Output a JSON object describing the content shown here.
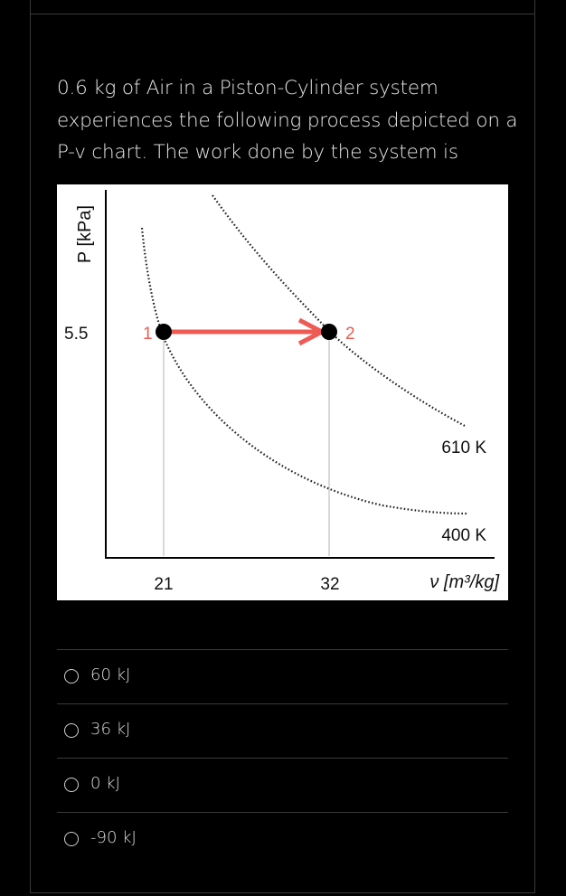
{
  "question": {
    "lines": [
      "0.6 kg of Air in a Piston-Cylinder system",
      "experiences the following process depicted on a",
      "P-v chart. The work done by the system is"
    ]
  },
  "chart_data": {
    "type": "line",
    "ylabel": "P [kPa]",
    "xlabel": "ν [m³/kg]",
    "y_ticks": [
      "5.5"
    ],
    "x_ticks": [
      "21",
      "32"
    ],
    "points": [
      {
        "label": "1",
        "x": 21,
        "y": 5.5
      },
      {
        "label": "2",
        "x": 32,
        "y": 5.5
      }
    ],
    "isotherms": [
      {
        "name": "610 K"
      },
      {
        "name": "400 K"
      }
    ],
    "process": {
      "from": "1",
      "to": "2",
      "color": "#ee5a54"
    }
  },
  "options": [
    {
      "label": "60 kJ"
    },
    {
      "label": "36 kJ"
    },
    {
      "label": "0 kJ"
    },
    {
      "label": "-90 kJ"
    }
  ],
  "colors": {
    "background": "#000000",
    "arrow": "#ee5a54",
    "text": "#e8e8e8"
  }
}
